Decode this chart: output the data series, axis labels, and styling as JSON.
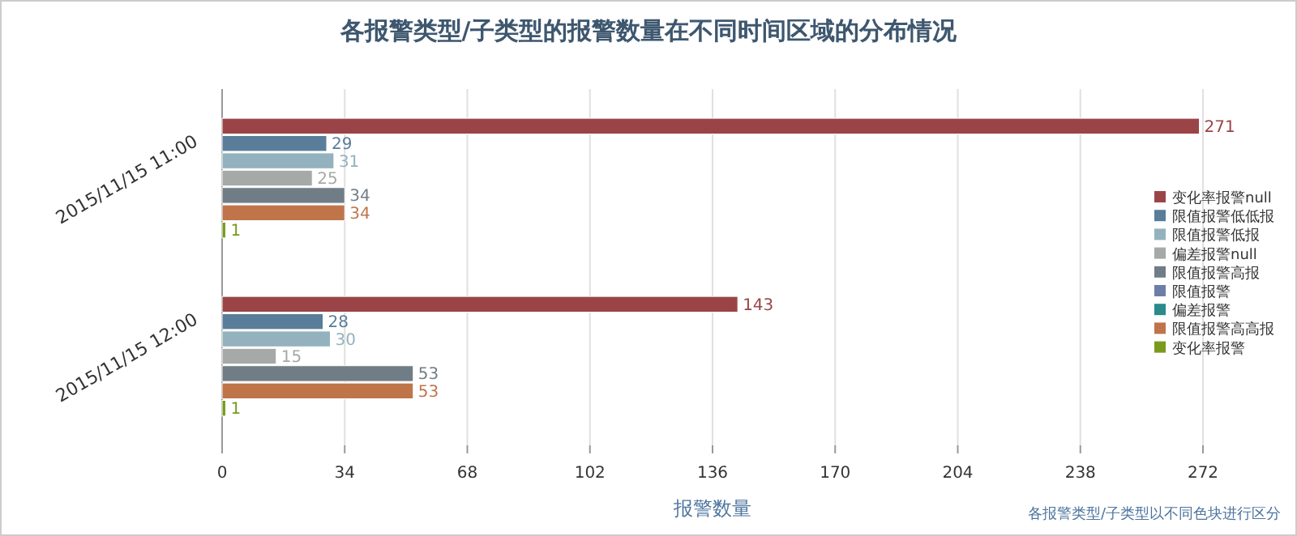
{
  "chart_data": {
    "type": "bar",
    "orientation": "horizontal",
    "title": "各报警类型/子类型的报警数量在不同时间区域的分布情况",
    "xlabel": "报警数量",
    "categories": [
      "2015/11/15 11:00",
      "2015/11/15 12:00"
    ],
    "series": [
      {
        "name": "变化率报警null",
        "color": "#9b4447",
        "values": [
          271,
          143
        ]
      },
      {
        "name": "限值报警低低报",
        "color": "#5a7d99",
        "values": [
          29,
          28
        ]
      },
      {
        "name": "限值报警低报",
        "color": "#93b2bd",
        "values": [
          31,
          30
        ]
      },
      {
        "name": "偏差报警null",
        "color": "#a5a9a8",
        "values": [
          25,
          15
        ]
      },
      {
        "name": "限值报警高报",
        "color": "#717d86",
        "values": [
          34,
          53
        ]
      },
      {
        "name": "限值报警",
        "color": "#6c7fa8",
        "values": [
          null,
          null
        ]
      },
      {
        "name": "偏差报警",
        "color": "#2b8a8a",
        "values": [
          null,
          null
        ]
      },
      {
        "name": "限值报警高高报",
        "color": "#c0744a",
        "values": [
          34,
          53
        ]
      },
      {
        "name": "变化率报警",
        "color": "#7a9a1e",
        "values": [
          1,
          1
        ]
      }
    ],
    "xlim": [
      0,
      272
    ],
    "xticks": [
      0,
      34,
      68,
      102,
      136,
      170,
      204,
      238,
      272
    ],
    "grid": "x",
    "legend": "right",
    "data_labels": true,
    "annotations": [
      "各报警类型/子类型以不同色块进行区分"
    ]
  }
}
